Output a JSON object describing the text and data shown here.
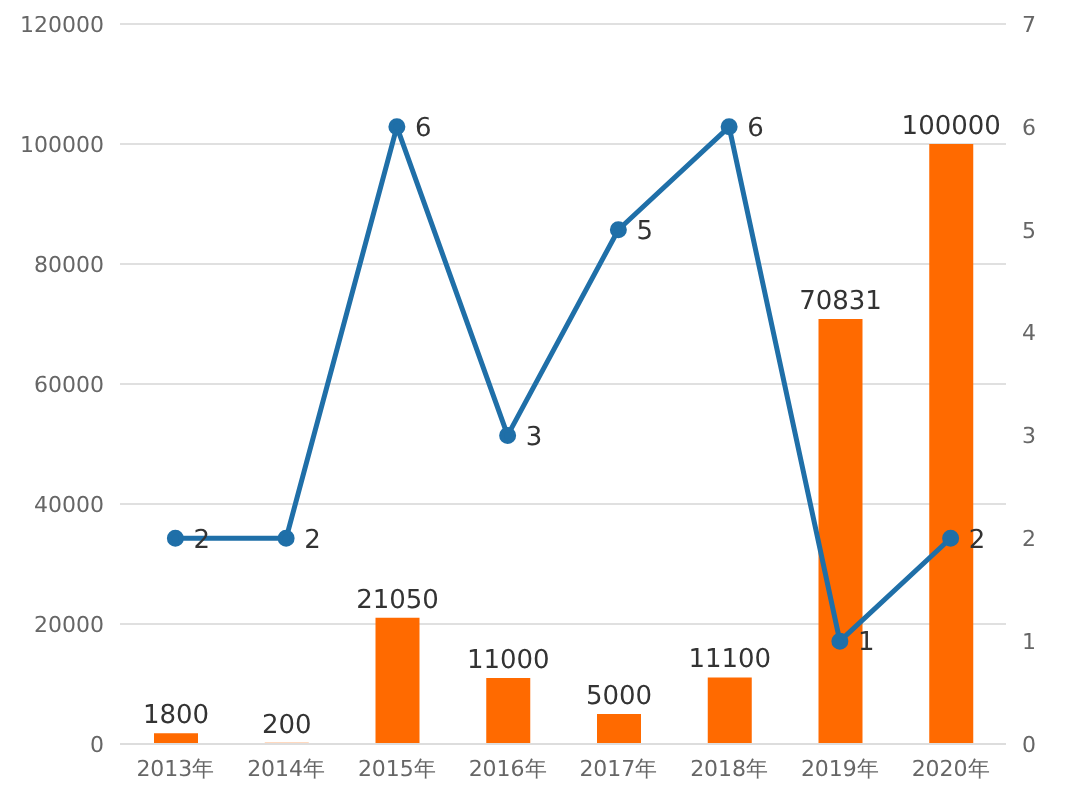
{
  "chart_data": {
    "type": "bar",
    "categories": [
      "2013年",
      "2014年",
      "2015年",
      "2016年",
      "2017年",
      "2018年",
      "2019年",
      "2020年"
    ],
    "series": [
      {
        "color": "#ff6a00",
        "values": [
          1800,
          200,
          21050,
          11000,
          5000,
          11100,
          70831,
          100000
        ]
      },
      {
        "type": "line",
        "axis": "y2",
        "color": "#1f6fa8",
        "values": [
          2,
          2,
          6,
          3,
          5,
          6,
          1,
          2
        ]
      }
    ],
    "ylim": [
      0,
      120000
    ],
    "yticks": [
      0,
      20000,
      40000,
      60000,
      80000,
      100000,
      120000
    ],
    "y2lim": [
      0,
      7
    ],
    "y2ticks": [
      0,
      1,
      2,
      3,
      4,
      5,
      6,
      7
    ],
    "grid": "y",
    "marker": "circle",
    "data_labels": true,
    "legend": false
  }
}
